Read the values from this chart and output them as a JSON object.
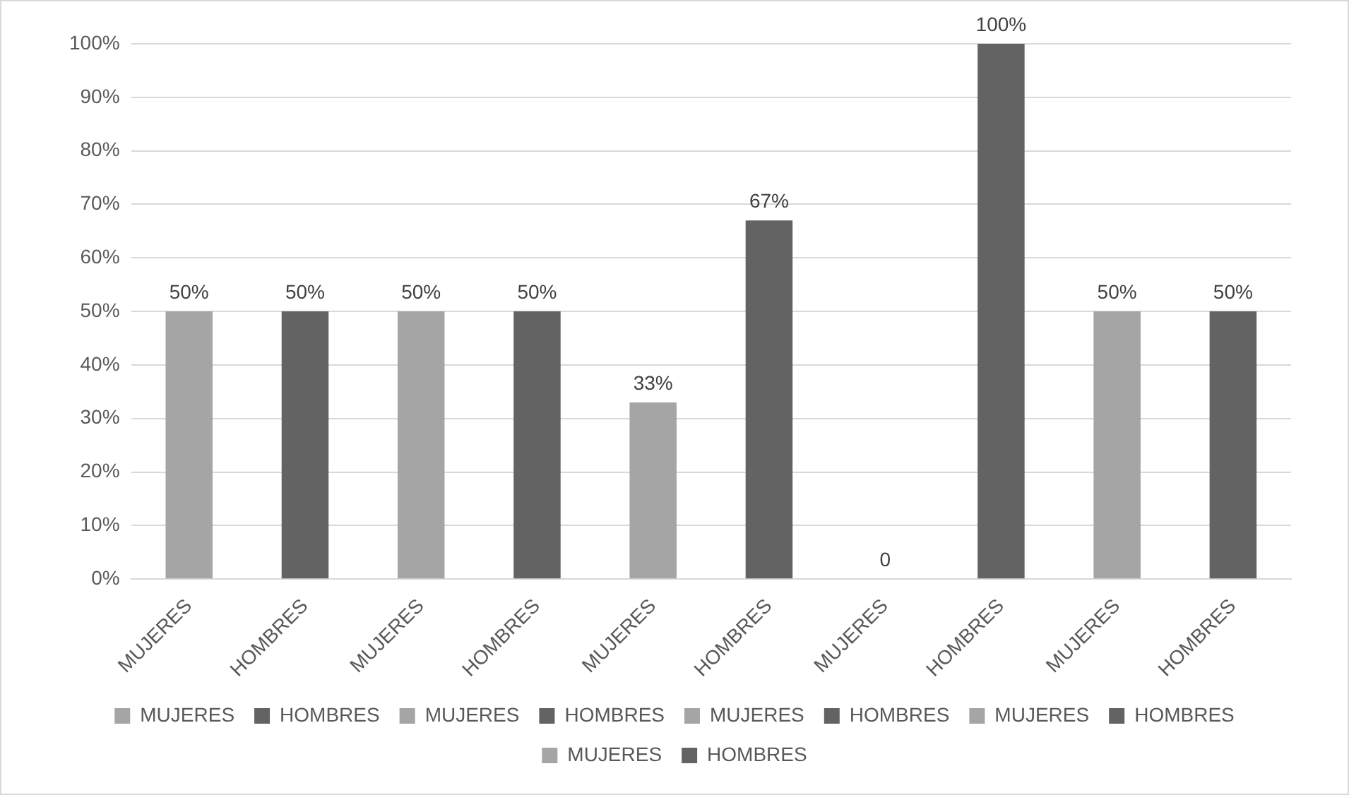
{
  "chart_data": {
    "type": "bar",
    "categories": [
      "MUJERES",
      "HOMBRES",
      "MUJERES",
      "HOMBRES",
      "MUJERES",
      "HOMBRES",
      "MUJERES",
      "HOMBRES",
      "MUJERES",
      "HOMBRES"
    ],
    "series": [
      {
        "name": "MUJERES",
        "color": "#a5a5a5",
        "values": [
          50,
          null,
          null,
          null,
          null,
          null,
          null,
          null,
          null,
          null
        ],
        "value_labels": [
          "50%",
          null,
          null,
          null,
          null,
          null,
          null,
          null,
          null,
          null
        ]
      },
      {
        "name": "HOMBRES",
        "color": "#636363",
        "values": [
          null,
          50,
          null,
          null,
          null,
          null,
          null,
          null,
          null,
          null
        ],
        "value_labels": [
          null,
          "50%",
          null,
          null,
          null,
          null,
          null,
          null,
          null,
          null
        ]
      },
      {
        "name": "MUJERES",
        "color": "#a5a5a5",
        "values": [
          null,
          null,
          50,
          null,
          null,
          null,
          null,
          null,
          null,
          null
        ],
        "value_labels": [
          null,
          null,
          "50%",
          null,
          null,
          null,
          null,
          null,
          null,
          null
        ]
      },
      {
        "name": "HOMBRES",
        "color": "#636363",
        "values": [
          null,
          null,
          null,
          50,
          null,
          null,
          null,
          null,
          null,
          null
        ],
        "value_labels": [
          null,
          null,
          null,
          "50%",
          null,
          null,
          null,
          null,
          null,
          null
        ]
      },
      {
        "name": "MUJERES",
        "color": "#a5a5a5",
        "values": [
          null,
          null,
          null,
          null,
          33,
          null,
          null,
          null,
          null,
          null
        ],
        "value_labels": [
          null,
          null,
          null,
          null,
          "33%",
          null,
          null,
          null,
          null,
          null
        ]
      },
      {
        "name": "HOMBRES",
        "color": "#636363",
        "values": [
          null,
          null,
          null,
          null,
          null,
          67,
          null,
          null,
          null,
          null
        ],
        "value_labels": [
          null,
          null,
          null,
          null,
          null,
          "67%",
          null,
          null,
          null,
          null
        ]
      },
      {
        "name": "MUJERES",
        "color": "#a5a5a5",
        "values": [
          null,
          null,
          null,
          null,
          null,
          null,
          0,
          null,
          null,
          null
        ],
        "value_labels": [
          null,
          null,
          null,
          null,
          null,
          null,
          "0",
          null,
          null,
          null
        ]
      },
      {
        "name": "HOMBRES",
        "color": "#636363",
        "values": [
          null,
          null,
          null,
          null,
          null,
          null,
          null,
          100,
          null,
          null
        ],
        "value_labels": [
          null,
          null,
          null,
          null,
          null,
          null,
          null,
          "100%",
          null,
          null
        ]
      },
      {
        "name": "MUJERES",
        "color": "#a5a5a5",
        "values": [
          null,
          null,
          null,
          null,
          null,
          null,
          null,
          null,
          50,
          null
        ],
        "value_labels": [
          null,
          null,
          null,
          null,
          null,
          null,
          null,
          null,
          "50%",
          null
        ]
      },
      {
        "name": "HOMBRES",
        "color": "#636363",
        "values": [
          null,
          null,
          null,
          null,
          null,
          null,
          null,
          null,
          null,
          50
        ],
        "value_labels": [
          null,
          null,
          null,
          null,
          null,
          null,
          null,
          null,
          null,
          "50%"
        ]
      }
    ],
    "ylim": [
      0,
      100
    ],
    "yticks": [
      {
        "value": 0,
        "label": "0%"
      },
      {
        "value": 10,
        "label": "10%"
      },
      {
        "value": 20,
        "label": "20%"
      },
      {
        "value": 30,
        "label": "30%"
      },
      {
        "value": 40,
        "label": "40%"
      },
      {
        "value": 50,
        "label": "50%"
      },
      {
        "value": 60,
        "label": "60%"
      },
      {
        "value": 70,
        "label": "70%"
      },
      {
        "value": 80,
        "label": "80%"
      },
      {
        "value": 90,
        "label": "90%"
      },
      {
        "value": 100,
        "label": "100%"
      }
    ],
    "grid": "y",
    "legend": "bottom"
  }
}
